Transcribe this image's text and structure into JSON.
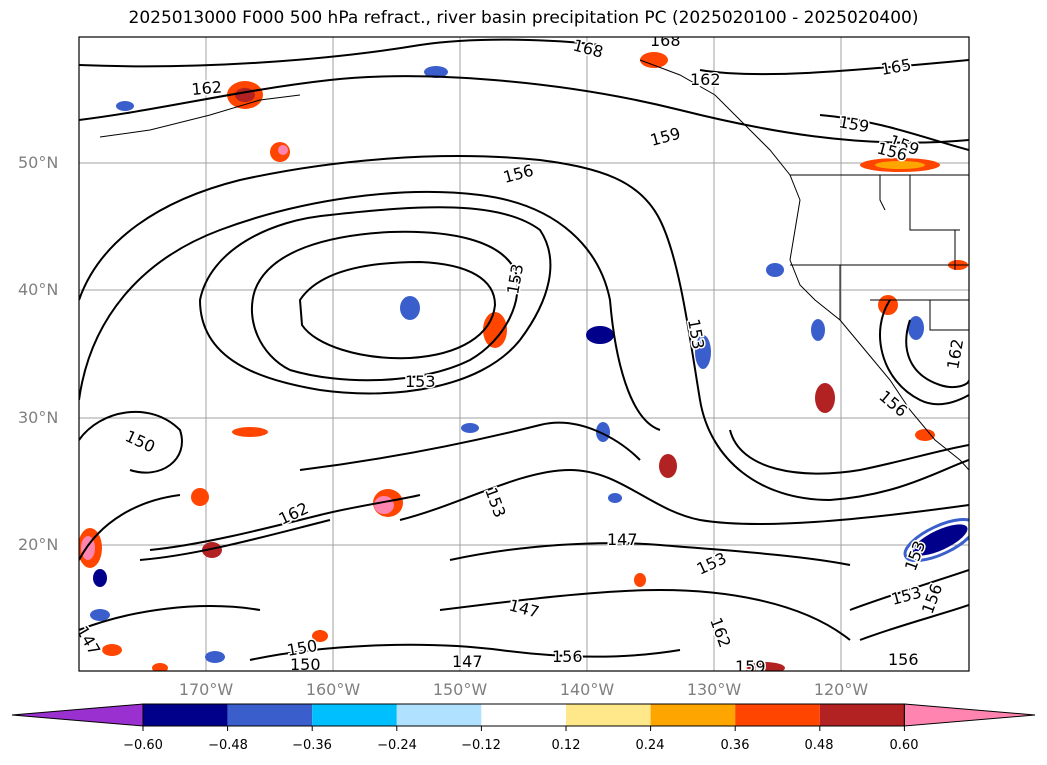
{
  "title": "2025013000 F000 500 hPa refract., river basin precipitation PC (2025020100 - 2025020400)",
  "map": {
    "latitude_labels": [
      "50°N",
      "40°N",
      "30°N",
      "20°N"
    ],
    "longitude_labels": [
      "170°W",
      "160°W",
      "150°W",
      "140°W",
      "130°W",
      "120°W"
    ],
    "gridlines": true,
    "colors": {
      "land_outline": "#000000",
      "contour": "#000000",
      "gridline": "#a0a0a0",
      "label": "#808080"
    },
    "contour_labels": [
      {
        "text": "168"
      },
      {
        "text": "168"
      },
      {
        "text": "162"
      },
      {
        "text": "162"
      },
      {
        "text": "165"
      },
      {
        "text": "159"
      },
      {
        "text": "159"
      },
      {
        "text": "159"
      },
      {
        "text": "156"
      },
      {
        "text": "156"
      },
      {
        "text": "153"
      },
      {
        "text": "153"
      },
      {
        "text": "153"
      },
      {
        "text": "150"
      },
      {
        "text": "153"
      },
      {
        "text": "162"
      },
      {
        "text": "147"
      },
      {
        "text": "153"
      },
      {
        "text": "147"
      },
      {
        "text": "162"
      },
      {
        "text": "159"
      },
      {
        "text": "147"
      },
      {
        "text": "150"
      },
      {
        "text": "150"
      },
      {
        "text": "156"
      },
      {
        "text": "153"
      },
      {
        "text": "156"
      },
      {
        "text": "156"
      },
      {
        "text": "156"
      },
      {
        "text": "162"
      },
      {
        "text": "153"
      },
      {
        "text": "147"
      }
    ]
  },
  "colorbar": {
    "ticks": [
      "−0.60",
      "−0.48",
      "−0.36",
      "−0.24",
      "−0.12",
      "0.12",
      "0.24",
      "0.36",
      "0.48",
      "0.60"
    ],
    "colors": [
      "#9b30d0",
      "#00008b",
      "#3a5fcd",
      "#00bfff",
      "#b0e2ff",
      "#ffffff",
      "#ffe88a",
      "#ffa500",
      "#ff4500",
      "#b22222",
      "#ff85b0"
    ],
    "extend": "both"
  }
}
